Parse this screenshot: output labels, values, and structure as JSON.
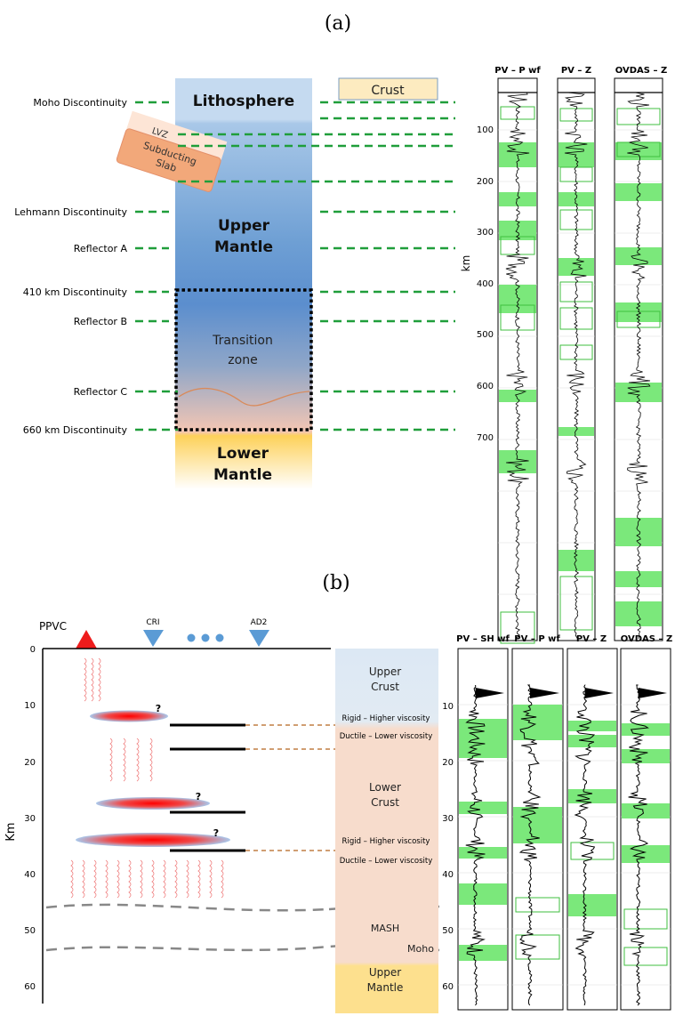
{
  "panel_a": {
    "label": "(a)",
    "layers": {
      "lithosphere": "Lithosphere",
      "crust": "Crust",
      "upper_mantle": [
        "Upper",
        "Mantle"
      ],
      "transition": [
        "Transition",
        "zone"
      ],
      "lower_mantle": [
        "Lower",
        "Mantle"
      ],
      "lvz": "LVZ",
      "slab": [
        "Subducting",
        "Slab"
      ]
    },
    "discontinuities": [
      "Moho Discontinuity",
      "Lehmann Discontinuity",
      "Reflector A",
      "410 km Discontinuity",
      "Reflector B",
      "Reflector C",
      "660 km Discontinuity"
    ],
    "traces": [
      "PV – P wf",
      "PV – Z",
      "OVDAS – Z"
    ],
    "axis_label": "km",
    "ticks": [
      "100",
      "200",
      "300",
      "400",
      "500",
      "600",
      "700"
    ]
  },
  "panel_b": {
    "label": "(b)",
    "stations": [
      "PPVC",
      "CRI",
      "AD2"
    ],
    "question_mark": "?",
    "axis_label": "Km",
    "ticks": [
      "0",
      "10",
      "20",
      "30",
      "40",
      "50",
      "60"
    ],
    "layers": {
      "upper_crust": [
        "Upper",
        "Crust"
      ],
      "lower_crust": [
        "Lower",
        "Crust"
      ],
      "mash": "MASH",
      "moho": "Moho",
      "upper_mantle": [
        "Upper",
        "Mantle"
      ]
    },
    "rheology": {
      "rigid": "Rigid – Higher viscosity",
      "ductile": "Ductile – Lower viscosity"
    },
    "traces": [
      "PV – SH wf",
      "PV – P wf",
      "PV – Z",
      "OVDAS – Z"
    ],
    "trace_ticks": [
      "10",
      "20",
      "30",
      "40",
      "50",
      "60"
    ]
  },
  "colors": {
    "green_dash": "#1f9e3a",
    "highlight": "#7be87b",
    "crust_box": "#fdebc0",
    "slab": "#f2a87a",
    "upper_crust": "#dce8f4",
    "lower_crust": "#f7dccc",
    "upper_mantle_b": "#fde08e",
    "lower_mantle_a": "#fdd15a"
  }
}
